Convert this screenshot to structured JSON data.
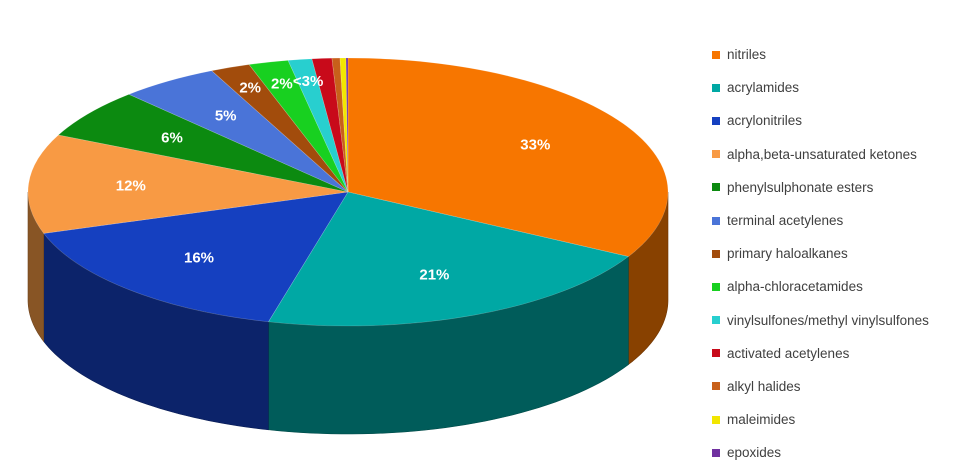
{
  "chart_data": {
    "type": "pie",
    "style": "3d",
    "legend_position": "right",
    "title": "",
    "slices": [
      {
        "label": "nitriles",
        "value": 33,
        "data_label": "33%",
        "color": "#f77600"
      },
      {
        "label": "acrylamides",
        "value": 21,
        "data_label": "21%",
        "color": "#00a8a4"
      },
      {
        "label": "acrylonitriles",
        "value": 16,
        "data_label": "16%",
        "color": "#1540c0"
      },
      {
        "label": "alpha,beta-unsaturated ketones",
        "value": 12,
        "data_label": "12%",
        "color": "#f89a44"
      },
      {
        "label": "phenylsulphonate esters",
        "value": 6,
        "data_label": "6%",
        "color": "#0c8a10"
      },
      {
        "label": "terminal acetylenes",
        "value": 5,
        "data_label": "5%",
        "color": "#4a74d8"
      },
      {
        "label": "primary haloalkanes",
        "value": 2,
        "data_label": "2%",
        "color": "#a24c0c"
      },
      {
        "label": "alpha-chloracetamides",
        "value": 2,
        "data_label": "2%",
        "color": "#18d020"
      },
      {
        "label": "vinylsulfones/methyl vinylsulfones",
        "value": 1.2,
        "data_label": "<3%",
        "color": "#28cfcf"
      },
      {
        "label": "activated acetylenes",
        "value": 1,
        "data_label": "",
        "color": "#c80a1a"
      },
      {
        "label": "alkyl halides",
        "value": 0.4,
        "data_label": "",
        "color": "#c8601a"
      },
      {
        "label": "maleimides",
        "value": 0.3,
        "data_label": "",
        "color": "#f2e600"
      },
      {
        "label": "epoxides",
        "value": 0.1,
        "data_label": "",
        "color": "#7030a0"
      }
    ]
  }
}
